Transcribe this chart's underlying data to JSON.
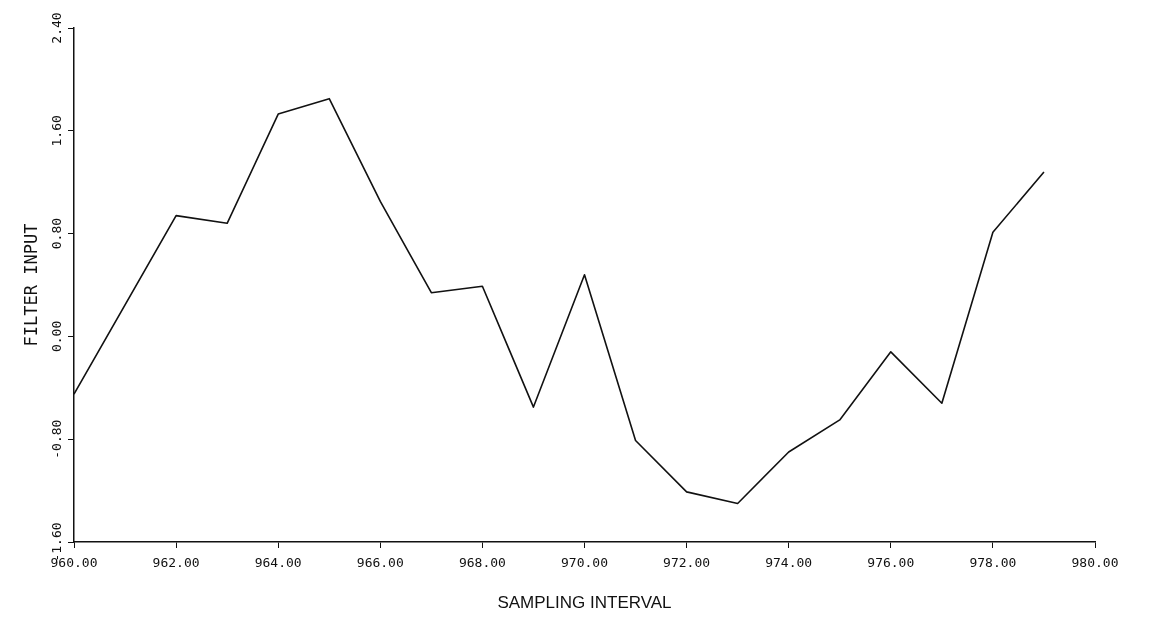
{
  "chart_data": {
    "type": "line",
    "xlabel": "SAMPLING INTERVAL",
    "ylabel": "FILTER INPUT",
    "x": [
      960,
      962,
      963,
      964,
      965,
      966,
      967,
      968,
      969,
      970,
      971,
      972,
      973,
      974,
      975,
      976,
      977,
      978,
      979
    ],
    "series": [
      {
        "color": "#111111",
        "values": [
          -0.45,
          0.94,
          0.88,
          1.73,
          1.85,
          1.05,
          0.34,
          0.39,
          -0.55,
          0.48,
          -0.81,
          -1.21,
          -1.3,
          -0.9,
          -0.65,
          -0.12,
          -0.52,
          0.81,
          1.28
        ]
      }
    ],
    "xlim": [
      960,
      980
    ],
    "xticks": [
      {
        "value": 960,
        "label": "960.00"
      },
      {
        "value": 962,
        "label": "962.00"
      },
      {
        "value": 964,
        "label": "964.00"
      },
      {
        "value": 966,
        "label": "966.00"
      },
      {
        "value": 968,
        "label": "968.00"
      },
      {
        "value": 970,
        "label": "970.00"
      },
      {
        "value": 972,
        "label": "972.00"
      },
      {
        "value": 974,
        "label": "974.00"
      },
      {
        "value": 976,
        "label": "976.00"
      },
      {
        "value": 978,
        "label": "978.00"
      },
      {
        "value": 980,
        "label": "980.00"
      }
    ],
    "ylim": [
      -1.6,
      2.4
    ],
    "yticks": [
      {
        "value": -1.6,
        "label": "-1.60"
      },
      {
        "value": -0.8,
        "label": "-0.80"
      },
      {
        "value": 0,
        "label": "0.00"
      },
      {
        "value": 0.8,
        "label": "0.80"
      },
      {
        "value": 1.6,
        "label": "1.60"
      },
      {
        "value": 2.4,
        "label": "2.40"
      }
    ],
    "grid": false,
    "legend": false,
    "marker": "none",
    "line_style": "solid"
  }
}
